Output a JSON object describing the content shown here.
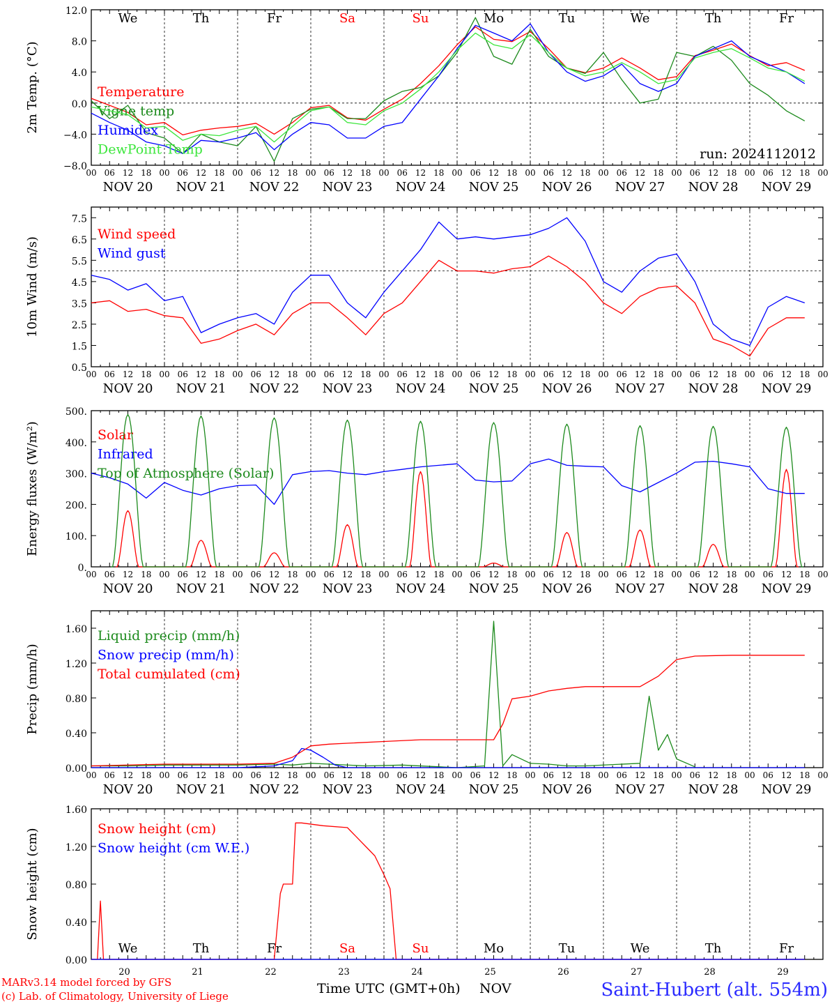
{
  "footer": {
    "model_line": "MARv3.14 model forced by GFS",
    "copyright_line": "(c) Lab. of Climatology, University of Liege",
    "xaxis_label": "Time UTC (GMT+0h)",
    "month": "NOV",
    "station": "Saint-Hubert (alt. 554m)"
  },
  "colors": {
    "red": "#ff0000",
    "green": "#1c8a1c",
    "blue": "#0000ff",
    "lightgreen": "#3ce63c"
  },
  "chart_data": [
    {
      "type": "line",
      "ylabel": "2m Temp. (°C)",
      "ylim": [
        -8,
        12
      ],
      "yticks": [
        "12.0",
        "8.0",
        "4.0",
        "0.0",
        "−4.0",
        "−8.0"
      ],
      "ytick_values": [
        12,
        8,
        4,
        0,
        -4,
        -8
      ],
      "ref_line": 0,
      "run_label": "run: 2024112012",
      "weekdays": [
        "We",
        "Th",
        "Fr",
        "Sa",
        "Su",
        "Mo",
        "Tu",
        "We",
        "Th",
        "Fr"
      ],
      "weekend_days": [
        "Sa",
        "Su"
      ],
      "x_hours_note": "hours since 2024-11-20 00 UTC",
      "series": [
        {
          "name": "Temperature",
          "color": "#ff0000",
          "x": [
            0,
            6,
            12,
            18,
            24,
            30,
            36,
            42,
            48,
            54,
            60,
            66,
            72,
            78,
            84,
            90,
            96,
            102,
            108,
            114,
            120,
            126,
            132,
            138,
            144,
            150,
            156,
            162,
            168,
            174,
            180,
            186,
            192,
            198,
            204,
            210,
            216,
            222,
            228,
            234
          ],
          "y": [
            0.6,
            -0.3,
            -1.2,
            -2.8,
            -2.5,
            -4.1,
            -3.5,
            -3.2,
            -3.0,
            -2.6,
            -4.0,
            -2.5,
            -0.6,
            -0.3,
            -1.9,
            -2.2,
            -0.8,
            0.5,
            2.5,
            4.8,
            7.5,
            9.8,
            8.2,
            7.9,
            9.2,
            7.0,
            4.5,
            3.9,
            4.5,
            5.8,
            4.5,
            3.0,
            3.4,
            6.1,
            6.8,
            7.6,
            6.1,
            4.8,
            5.2,
            4.2
          ]
        },
        {
          "name": "Vigne temp",
          "color": "#1c8a1c",
          "x": [
            0,
            6,
            12,
            18,
            24,
            30,
            36,
            42,
            48,
            54,
            60,
            66,
            72,
            78,
            84,
            90,
            96,
            102,
            108,
            114,
            120,
            126,
            132,
            138,
            144,
            150,
            156,
            162,
            168,
            174,
            180,
            186,
            192,
            198,
            204,
            210,
            216,
            222,
            228,
            234
          ],
          "y": [
            0.3,
            -2.0,
            -0.3,
            -3.8,
            -4.5,
            -6.5,
            -4.0,
            -5.0,
            -5.5,
            -3.0,
            -7.5,
            -2.0,
            -0.8,
            -0.5,
            -2.0,
            -2.0,
            0.3,
            1.5,
            2.0,
            3.5,
            6.5,
            11.0,
            6.0,
            5.0,
            9.5,
            6.0,
            4.5,
            3.8,
            6.5,
            3.0,
            0.0,
            0.5,
            6.5,
            6.0,
            7.3,
            5.5,
            2.5,
            1.0,
            -1.0,
            -2.3
          ]
        },
        {
          "name": "Humidex",
          "color": "#0000ff",
          "x": [
            0,
            6,
            12,
            18,
            24,
            30,
            36,
            42,
            48,
            54,
            60,
            66,
            72,
            78,
            84,
            90,
            96,
            102,
            108,
            114,
            120,
            126,
            132,
            138,
            144,
            150,
            156,
            162,
            168,
            174,
            180,
            186,
            192,
            198,
            204,
            210,
            216,
            222,
            228,
            234
          ],
          "y": [
            -1.3,
            -2.5,
            -3.5,
            -5.0,
            -5.5,
            -6.5,
            -4.8,
            -5.0,
            -4.5,
            -3.8,
            -6.0,
            -4.0,
            -2.5,
            -2.8,
            -4.5,
            -4.5,
            -3.0,
            -2.5,
            0.5,
            3.5,
            7.0,
            10.0,
            9.0,
            8.0,
            10.2,
            6.5,
            4.0,
            2.8,
            3.5,
            5.0,
            2.5,
            1.5,
            2.5,
            6.0,
            7.0,
            8.0,
            6.0,
            5.0,
            4.0,
            2.5
          ]
        },
        {
          "name": "DewPoint Temp",
          "color": "#3ce63c",
          "x": [
            0,
            6,
            12,
            18,
            24,
            30,
            36,
            42,
            48,
            54,
            60,
            66,
            72,
            78,
            84,
            90,
            96,
            102,
            108,
            114,
            120,
            126,
            132,
            138,
            144,
            150,
            156,
            162,
            168,
            174,
            180,
            186,
            192,
            198,
            204,
            210,
            216,
            222,
            228,
            234
          ],
          "y": [
            -0.5,
            -1.0,
            -1.5,
            -3.2,
            -3.0,
            -4.8,
            -4.0,
            -4.2,
            -3.5,
            -3.0,
            -5.0,
            -3.0,
            -1.0,
            -0.5,
            -2.5,
            -2.8,
            -1.0,
            0.0,
            1.8,
            4.0,
            6.8,
            9.0,
            7.5,
            7.0,
            8.8,
            6.5,
            4.5,
            3.5,
            4.0,
            5.2,
            4.0,
            2.5,
            3.0,
            5.8,
            6.5,
            7.0,
            5.8,
            4.5,
            4.0,
            2.8
          ]
        }
      ]
    },
    {
      "type": "line",
      "ylabel": "10m Wind (m/s)",
      "ylim": [
        0.5,
        8
      ],
      "yticks": [
        "7.5",
        "6.5",
        "5.5",
        "4.5",
        "3.5",
        "2.5",
        "1.5",
        "0.5"
      ],
      "ytick_values": [
        7.5,
        6.5,
        5.5,
        4.5,
        3.5,
        2.5,
        1.5,
        0.5
      ],
      "ref_line": 5.0,
      "series": [
        {
          "name": "Wind speed",
          "color": "#ff0000",
          "x": [
            0,
            6,
            12,
            18,
            24,
            30,
            36,
            42,
            48,
            54,
            60,
            66,
            72,
            78,
            84,
            90,
            96,
            102,
            108,
            114,
            120,
            126,
            132,
            138,
            144,
            150,
            156,
            162,
            168,
            174,
            180,
            186,
            192,
            198,
            204,
            210,
            216,
            222,
            228,
            234
          ],
          "y": [
            3.5,
            3.6,
            3.1,
            3.2,
            2.9,
            2.8,
            1.6,
            1.8,
            2.2,
            2.5,
            2.0,
            3.0,
            3.5,
            3.5,
            2.8,
            2.0,
            3.0,
            3.5,
            4.5,
            5.5,
            5.0,
            5.0,
            4.9,
            5.1,
            5.2,
            5.7,
            5.2,
            4.5,
            3.5,
            3.0,
            3.8,
            4.2,
            4.3,
            3.5,
            1.8,
            1.5,
            1.0,
            2.3,
            2.8,
            2.8
          ]
        },
        {
          "name": "Wind gust",
          "color": "#0000ff",
          "x": [
            0,
            6,
            12,
            18,
            24,
            30,
            36,
            42,
            48,
            54,
            60,
            66,
            72,
            78,
            84,
            90,
            96,
            102,
            108,
            114,
            120,
            126,
            132,
            138,
            144,
            150,
            156,
            162,
            168,
            174,
            180,
            186,
            192,
            198,
            204,
            210,
            216,
            222,
            228,
            234
          ],
          "y": [
            4.8,
            4.6,
            4.1,
            4.4,
            3.6,
            3.8,
            2.1,
            2.5,
            2.8,
            3.0,
            2.5,
            4.0,
            4.8,
            4.8,
            3.5,
            2.8,
            4.0,
            5.0,
            6.0,
            7.3,
            6.5,
            6.6,
            6.5,
            6.6,
            6.7,
            7.0,
            7.5,
            6.4,
            4.5,
            4.0,
            5.0,
            5.6,
            5.8,
            4.5,
            2.5,
            1.8,
            1.5,
            3.3,
            3.8,
            3.5
          ]
        }
      ]
    },
    {
      "type": "line",
      "ylabel": "Energy fluxes (W/m²)",
      "ylim": [
        0,
        500
      ],
      "yticks": [
        "500.",
        "400.",
        "300.",
        "200.",
        "100.",
        "0."
      ],
      "ytick_values": [
        500,
        400,
        300,
        200,
        100,
        0
      ],
      "series": [
        {
          "name": "Solar",
          "color": "#ff0000",
          "day_peaks": [
            180,
            85,
            45,
            135,
            305,
            12,
            110,
            118,
            72,
            312
          ]
        },
        {
          "name": "Infrared",
          "color": "#0000ff",
          "x": [
            0,
            6,
            12,
            18,
            24,
            30,
            36,
            42,
            48,
            54,
            60,
            66,
            72,
            78,
            84,
            90,
            96,
            102,
            108,
            114,
            120,
            126,
            132,
            138,
            144,
            150,
            156,
            162,
            168,
            174,
            180,
            186,
            192,
            198,
            204,
            210,
            216,
            222,
            228,
            234
          ],
          "y": [
            300,
            285,
            265,
            220,
            270,
            245,
            230,
            250,
            260,
            262,
            200,
            295,
            305,
            308,
            300,
            295,
            305,
            312,
            320,
            325,
            330,
            278,
            272,
            275,
            330,
            345,
            325,
            322,
            320,
            260,
            240,
            270,
            300,
            335,
            338,
            330,
            320,
            250,
            235,
            235
          ]
        },
        {
          "name": "Top of Atmosphere (Solar)",
          "color": "#1c8a1c",
          "day_peaks": [
            488,
            483,
            477,
            470,
            466,
            462,
            457,
            452,
            450,
            447
          ]
        }
      ]
    },
    {
      "type": "line",
      "ylabel": "Precip (mm/h)",
      "ylim": [
        0,
        1.8
      ],
      "yticks": [
        "1.60",
        "1.20",
        "0.80",
        "0.40",
        "0.00"
      ],
      "ytick_values": [
        1.6,
        1.2,
        0.8,
        0.4,
        0.0
      ],
      "series": [
        {
          "name": "Liquid precip (mm/h)",
          "color": "#1c8a1c",
          "x": [
            0,
            12,
            24,
            48,
            60,
            66,
            72,
            78,
            90,
            102,
            120,
            129,
            132,
            135,
            138,
            144,
            150,
            156,
            162,
            180,
            183,
            186,
            189,
            192,
            198
          ],
          "y": [
            0.02,
            0.02,
            0.03,
            0.03,
            0.04,
            0.03,
            0.05,
            0.04,
            0.02,
            0.03,
            0.0,
            0.02,
            1.68,
            0.02,
            0.15,
            0.05,
            0.04,
            0.02,
            0.02,
            0.05,
            0.82,
            0.2,
            0.38,
            0.1,
            0.01
          ]
        },
        {
          "name": "Snow precip (mm/h)",
          "color": "#0000ff",
          "x": [
            0,
            48,
            60,
            66,
            69,
            72,
            76,
            80,
            84,
            120,
            150,
            234
          ],
          "y": [
            0.0,
            0.0,
            0.02,
            0.08,
            0.22,
            0.2,
            0.12,
            0.03,
            0.0,
            0.0,
            0.0,
            0.0
          ]
        },
        {
          "name": "Total cumulated (cm)",
          "color": "#ff0000",
          "x": [
            0,
            24,
            48,
            60,
            66,
            72,
            78,
            84,
            96,
            108,
            120,
            132,
            135,
            138,
            144,
            150,
            156,
            162,
            168,
            180,
            186,
            192,
            198,
            210,
            234
          ],
          "y": [
            0.02,
            0.04,
            0.04,
            0.05,
            0.12,
            0.25,
            0.27,
            0.28,
            0.3,
            0.32,
            0.32,
            0.32,
            0.5,
            0.79,
            0.82,
            0.88,
            0.91,
            0.93,
            0.93,
            0.93,
            1.05,
            1.24,
            1.28,
            1.29,
            1.29
          ]
        }
      ]
    },
    {
      "type": "line",
      "ylabel": "Snow height (cm)",
      "ylim": [
        0,
        1.6
      ],
      "yticks": [
        "1.60",
        "1.20",
        "0.80",
        "0.40",
        "0.00"
      ],
      "ytick_values": [
        1.6,
        1.2,
        0.8,
        0.4,
        0.0
      ],
      "bottom_weekdays": [
        "We",
        "Th",
        "Fr",
        "Sa",
        "Su",
        "Mo",
        "Tu",
        "We",
        "Th",
        "Fr"
      ],
      "bottom_days": [
        "20",
        "21",
        "22",
        "23",
        "24",
        "25",
        "26",
        "27",
        "28",
        "29"
      ],
      "series": [
        {
          "name": "Snow height (cm)",
          "color": "#ff0000",
          "x": [
            0,
            2,
            3,
            4,
            5,
            60,
            62,
            63,
            66,
            67,
            69,
            76,
            84,
            90,
            93,
            96,
            98,
            100,
            101,
            234
          ],
          "y": [
            0,
            0,
            0.62,
            0,
            0,
            0,
            0.7,
            0.8,
            0.8,
            1.45,
            1.45,
            1.42,
            1.4,
            1.2,
            1.1,
            0.9,
            0.75,
            0.0,
            0.0,
            0.0
          ]
        },
        {
          "name": "Snow height (cm W.E.)",
          "color": "#0000ff",
          "x": [
            0,
            234
          ],
          "y": [
            0,
            0
          ]
        }
      ]
    }
  ],
  "x_axis": {
    "hour_ticks": [
      "00",
      "06",
      "12",
      "18"
    ],
    "last_tick": "00",
    "date_labels": [
      "NOV 20",
      "NOV 21",
      "NOV 22",
      "NOV 23",
      "NOV 24",
      "NOV 25",
      "NOV 26",
      "NOV 27",
      "NOV 28",
      "NOV 29"
    ]
  }
}
